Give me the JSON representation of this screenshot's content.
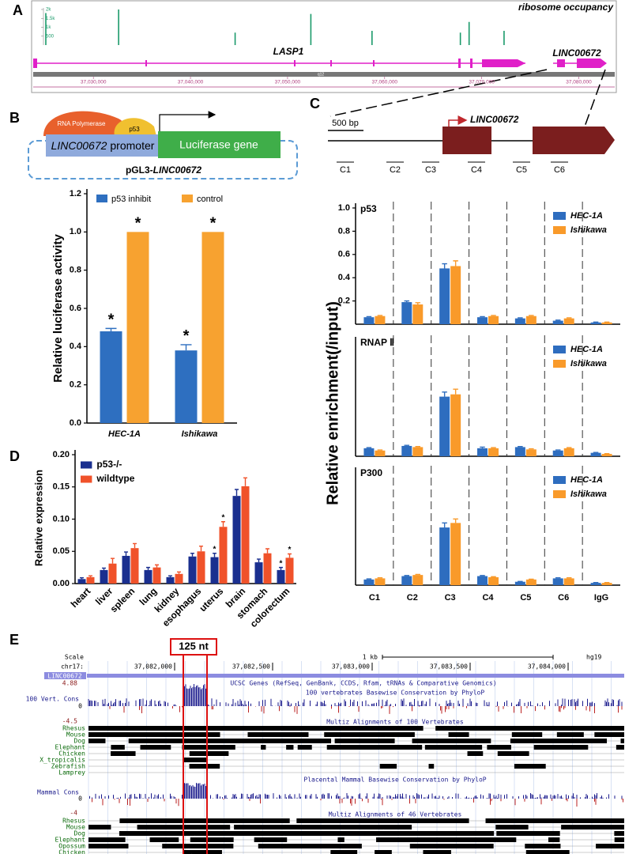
{
  "labels": {
    "a": "A",
    "b": "B",
    "c": "C",
    "d": "D",
    "e": "E"
  },
  "track": {
    "title": "ribosome occupancy",
    "genes": [
      "LASP1",
      "LINC00672"
    ],
    "band": "q12"
  },
  "promoter": {
    "polymerase": "RNA Polymerase",
    "factor": "p53",
    "gene": "LINC00672",
    "element": "promoter",
    "reporter": "Luciferase gene",
    "vector": "pGL3-",
    "insert": "LINC00672"
  },
  "gene_model": {
    "scale": "500 bp",
    "gene": "LINC00672",
    "regions": [
      "C1",
      "C2",
      "C3",
      "C4",
      "C5",
      "C6"
    ]
  },
  "chart_data": [
    {
      "type": "spike",
      "color": "#1a9a6a",
      "x": [
        37025100,
        37032600,
        37044600,
        37052400,
        37058700,
        37067800,
        37068700,
        37072300
      ],
      "values": [
        1800,
        2000,
        700,
        1750,
        800,
        700,
        1300,
        800
      ],
      "xlim": [
        37023800,
        37083700
      ],
      "ylim": [
        0,
        2000
      ],
      "yticks": [
        500,
        {
          "value": 1000,
          "label": "1k"
        },
        {
          "value": 1500,
          "label": "1.5k"
        },
        {
          "value": 2000,
          "label": "2k"
        }
      ],
      "xticks": [
        {
          "value": 37030000,
          "label": "37,030,000"
        },
        {
          "value": 37040000,
          "label": "37,040,000"
        },
        {
          "value": 37050000,
          "label": "37,050,000"
        },
        {
          "value": 37060000,
          "label": "37,060,000"
        },
        {
          "value": 37070000,
          "label": "37,070,000"
        },
        {
          "value": 37080000,
          "label": "37,080,000"
        }
      ]
    },
    {
      "type": "bar",
      "ylabel": "Relative luciferase activity",
      "categories": [
        "HEC-1A",
        "Ishikawa"
      ],
      "series": [
        {
          "name": "p53 inhibit",
          "color": "#2e6fc0",
          "values": [
            0.48,
            0.38
          ],
          "errors": [
            0.015,
            0.03
          ],
          "significance": [
            "*",
            "*"
          ]
        },
        {
          "name": "control",
          "color": "#f7a230",
          "values": [
            1,
            1
          ],
          "significance": [
            "*",
            "*"
          ]
        }
      ],
      "ylim": [
        0,
        1.2
      ],
      "yticks": [
        {
          "value": 0,
          "label": "0.0"
        },
        0.2,
        0.4,
        0.6,
        0.8,
        {
          "value": 1,
          "label": "1.0"
        },
        1.2
      ]
    },
    {
      "type": "bar",
      "ylabel": "Relative enrichment(/input)",
      "categories": [
        "C1",
        "C2",
        "C3",
        "C4",
        "C5",
        "C6",
        "IgG"
      ],
      "separators": true,
      "facets": [
        {
          "label": "p53",
          "ylim": [
            0,
            1
          ],
          "yticks": [
            0.2,
            0.4,
            0.6,
            0.8,
            {
              "value": 1,
              "label": "1.0"
            }
          ],
          "series": [
            {
              "name": "HEC-1A",
              "color": "#2e6dbf",
              "values": [
                0.06,
                0.19,
                0.48,
                0.06,
                0.05,
                0.03,
                0.015
              ],
              "errors": [
                0.005,
                0.01,
                0.04,
                0.005,
                0.005,
                0.005,
                0.003
              ]
            },
            {
              "name": "Ishikawa",
              "color": "#f99a2a",
              "values": [
                0.07,
                0.17,
                0.5,
                0.07,
                0.07,
                0.05,
                0.015
              ],
              "errors": [
                0.005,
                0.015,
                0.045,
                0.005,
                0.005,
                0.005,
                0.003
              ]
            }
          ]
        },
        {
          "label": "RNAP Ⅱ",
          "ylim": [
            0,
            1
          ],
          "series": [
            {
              "name": "HEC-1A",
              "color": "#2e6dbf",
              "values": [
                0.07,
                0.09,
                0.52,
                0.07,
                0.08,
                0.05,
                0.03
              ],
              "errors": [
                0.005,
                0.005,
                0.04,
                0.01,
                0.005,
                0.005,
                0.003
              ]
            },
            {
              "name": "Ishikawa",
              "color": "#f99a2a",
              "values": [
                0.05,
                0.08,
                0.54,
                0.07,
                0.06,
                0.07,
                0.02
              ],
              "errors": [
                0.005,
                0.005,
                0.045,
                0.005,
                0.005,
                0.005,
                0.003
              ]
            }
          ]
        },
        {
          "label": "P300",
          "ylim": [
            0,
            1
          ],
          "series": [
            {
              "name": "HEC-1A",
              "color": "#2e6dbf",
              "values": [
                0.05,
                0.08,
                0.51,
                0.08,
                0.03,
                0.06,
                0.02
              ],
              "errors": [
                0.005,
                0.005,
                0.04,
                0.005,
                0.003,
                0.005,
                0.003
              ]
            },
            {
              "name": "Ishikawa",
              "color": "#f99a2a",
              "values": [
                0.06,
                0.09,
                0.55,
                0.07,
                0.05,
                0.06,
                0.02
              ],
              "errors": [
                0.005,
                0.005,
                0.035,
                0.005,
                0.003,
                0.005,
                0.003
              ]
            }
          ]
        }
      ]
    },
    {
      "type": "bar",
      "ylabel": "Relative expression",
      "categories": [
        "heart",
        "liver",
        "spleen",
        "lung",
        "kidney",
        "esophagus",
        "uterus",
        "brain",
        "stomach",
        "colorectum"
      ],
      "series": [
        {
          "name": "p53-/-",
          "color": "#1a2f8f",
          "values": [
            0.007,
            0.021,
            0.043,
            0.021,
            0.01,
            0.042,
            0.041,
            0.136,
            0.033,
            0.021
          ],
          "errors": [
            0.002,
            0.003,
            0.006,
            0.004,
            0.002,
            0.005,
            0.006,
            0.01,
            0.005,
            0.004
          ],
          "significance": [
            null,
            null,
            null,
            null,
            null,
            null,
            "*",
            null,
            null,
            "*"
          ]
        },
        {
          "name": "wildtype",
          "color": "#f0522a",
          "values": [
            0.01,
            0.031,
            0.055,
            0.025,
            0.015,
            0.05,
            0.088,
            0.151,
            0.047,
            0.04
          ],
          "errors": [
            0.002,
            0.008,
            0.007,
            0.004,
            0.003,
            0.008,
            0.008,
            0.013,
            0.007,
            0.006
          ],
          "significance": [
            null,
            null,
            null,
            null,
            null,
            null,
            "*",
            null,
            null,
            "*"
          ]
        }
      ],
      "ylim": [
        0,
        0.2
      ],
      "yticks": [
        {
          "value": 0,
          "label": "0.00"
        },
        0.05,
        {
          "value": 0.1,
          "label": "0.10"
        },
        0.15,
        {
          "value": 0.2,
          "label": "0.20"
        }
      ]
    }
  ],
  "browser": {
    "highlight": "125 nt",
    "scale": "Scale",
    "chrom": "chr17:",
    "scale_bar": "1 kb",
    "assembly": "hg19",
    "positions": [
      "37,082,000",
      "37,082,500",
      "37,083,000",
      "37,083,500",
      "37,084,000"
    ],
    "gene": "LINC00672",
    "genes_track": "UCSC Genes (RefSeq, GenBank, CCDS, Rfam, tRNAs & Comparative Genomics)",
    "vert_track": "100 vertebrates Basewise Conservation by PhyloP",
    "vert_label": "100 Vert. Cons",
    "vert_range": [
      "4.88",
      "0",
      "-4.5"
    ],
    "multiz100": "Multiz Alignments of 100 Vertebrates",
    "species100": [
      "Rhesus",
      "Mouse",
      "Dog",
      "Elephant",
      "Chicken",
      "X_tropicalis",
      "Zebrafish",
      "Lamprey"
    ],
    "mammal_track": "Placental Mammal Basewise Conservation by PhyloP",
    "mammal_label": "Mammal Cons",
    "mammal_range": [
      "0",
      "-4"
    ],
    "multiz46": "Multiz Alignments of 46 Vertebrates",
    "species46": [
      "Rhesus",
      "Mouse",
      "Dog",
      "Elephant",
      "Opossum",
      "Chicken"
    ]
  }
}
